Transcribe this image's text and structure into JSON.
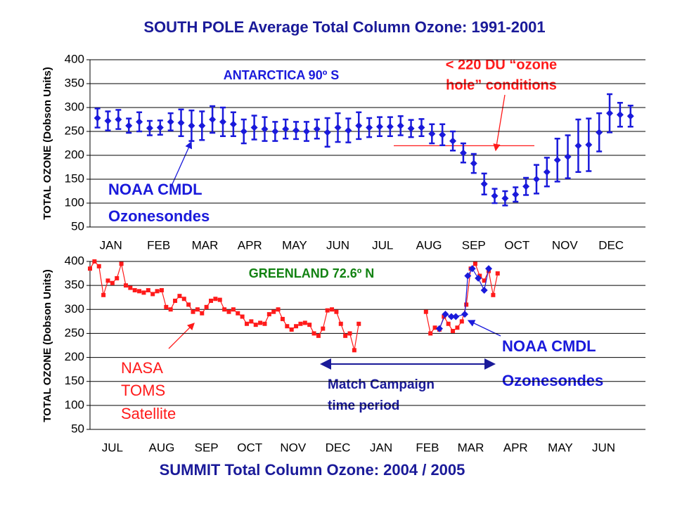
{
  "chart_data": [
    {
      "type": "errorbar",
      "title": "SOUTH POLE  Average Total Column Ozone: 1991-2001",
      "ylabel": "TOTAL OZONE (Dobson Units)",
      "annotations": [
        "ANTARCTICA 90º S",
        "< 220 DU “ozone",
        "hole” conditions",
        "NOAA CMDL",
        "Ozonesondes"
      ],
      "threshold": 220,
      "xlim": [
        0,
        372
      ],
      "xticks": [
        {
          "value": 14,
          "label": "JAN"
        },
        {
          "value": 46,
          "label": "FEB"
        },
        {
          "value": 77,
          "label": "MAR"
        },
        {
          "value": 107,
          "label": "APR"
        },
        {
          "value": 137,
          "label": "MAY"
        },
        {
          "value": 166,
          "label": "JUN"
        },
        {
          "value": 196,
          "label": "JUL"
        },
        {
          "value": 227,
          "label": "AUG"
        },
        {
          "value": 257,
          "label": "SEP"
        },
        {
          "value": 286,
          "label": "OCT"
        },
        {
          "value": 318,
          "label": "NOV"
        },
        {
          "value": 349,
          "label": "DEC"
        }
      ],
      "ylim": [
        50,
        400
      ],
      "yticks": [
        50,
        100,
        150,
        200,
        250,
        300,
        350,
        400
      ],
      "grid": true,
      "color": "#1a1adb",
      "x": [
        5,
        12,
        19,
        26,
        33,
        40,
        47,
        54,
        61,
        68,
        75,
        82,
        89,
        96,
        103,
        110,
        117,
        124,
        131,
        138,
        145,
        152,
        159,
        166,
        173,
        180,
        187,
        194,
        201,
        208,
        215,
        222,
        229,
        236,
        243,
        250,
        257,
        264,
        271,
        278,
        285,
        292,
        299,
        306,
        313,
        320,
        327,
        334,
        341,
        348,
        355,
        362
      ],
      "values": [
        278,
        272,
        275,
        262,
        270,
        257,
        258,
        270,
        268,
        262,
        262,
        275,
        270,
        265,
        250,
        258,
        255,
        250,
        255,
        252,
        250,
        255,
        248,
        258,
        252,
        262,
        258,
        260,
        260,
        262,
        256,
        258,
        245,
        243,
        230,
        205,
        183,
        140,
        115,
        110,
        118,
        135,
        150,
        165,
        190,
        197,
        220,
        222,
        248,
        288,
        285,
        282
      ],
      "errors": [
        20,
        20,
        20,
        15,
        20,
        15,
        15,
        18,
        28,
        32,
        30,
        28,
        30,
        25,
        25,
        25,
        25,
        20,
        20,
        18,
        20,
        20,
        30,
        30,
        25,
        28,
        20,
        20,
        20,
        20,
        18,
        18,
        20,
        22,
        20,
        20,
        20,
        22,
        15,
        15,
        15,
        18,
        30,
        30,
        45,
        45,
        55,
        55,
        40,
        40,
        25,
        22
      ]
    },
    {
      "type": "scatter_line",
      "title": "SUMMIT  Total Column Ozone:   2004 / 2005",
      "ylabel": "TOTAL OZONE (Dobson Units)",
      "annotations": [
        "GREENLAND  72.6º N",
        "NASA",
        "TOMS",
        "Satellite",
        "NOAA CMDL",
        "Ozonesondes",
        "Match Campaign",
        "time period"
      ],
      "xlim": [
        0,
        372
      ],
      "xticks": [
        {
          "value": 15,
          "label": "JUL"
        },
        {
          "value": 48,
          "label": "AUG"
        },
        {
          "value": 78,
          "label": "SEP"
        },
        {
          "value": 107,
          "label": "OCT"
        },
        {
          "value": 136,
          "label": "NOV"
        },
        {
          "value": 166,
          "label": "DEC"
        },
        {
          "value": 195,
          "label": "JAN"
        },
        {
          "value": 226,
          "label": "FEB"
        },
        {
          "value": 255,
          "label": "MAR"
        },
        {
          "value": 285,
          "label": "APR"
        },
        {
          "value": 315,
          "label": "MAY"
        },
        {
          "value": 344,
          "label": "JUN"
        }
      ],
      "ylim": [
        50,
        400
      ],
      "yticks": [
        50,
        100,
        150,
        200,
        250,
        300,
        350,
        400
      ],
      "grid": true,
      "series": [
        {
          "color": "#ff1a1a",
          "marker": "square",
          "x": [
            0,
            3,
            6,
            9,
            12,
            15,
            18,
            21,
            24,
            27,
            30,
            33,
            36,
            39,
            42,
            45,
            48,
            51,
            54,
            57,
            60,
            63,
            66,
            69,
            72,
            75,
            78,
            81,
            84,
            87,
            90,
            93,
            96,
            99,
            102,
            105,
            108,
            111,
            114,
            117,
            120,
            123,
            126,
            129,
            132,
            135,
            138,
            141,
            144,
            147,
            150,
            153,
            156,
            159,
            162,
            165,
            168,
            171,
            174,
            177,
            180,
            200,
            225,
            228,
            231,
            234,
            237,
            240,
            243,
            246,
            249,
            252,
            255,
            258,
            261,
            264,
            267,
            270,
            273
          ],
          "values": [
            385,
            400,
            390,
            330,
            360,
            355,
            365,
            395,
            350,
            345,
            340,
            338,
            335,
            340,
            332,
            338,
            340,
            305,
            300,
            318,
            328,
            322,
            310,
            295,
            300,
            292,
            305,
            318,
            322,
            320,
            300,
            295,
            300,
            292,
            285,
            270,
            275,
            268,
            272,
            270,
            290,
            295,
            300,
            280,
            265,
            258,
            265,
            270,
            272,
            268,
            250,
            245,
            260,
            298,
            300,
            295,
            270,
            245,
            250,
            215,
            270,
            null,
            295,
            250,
            262,
            258,
            285,
            270,
            255,
            262,
            275,
            310,
            385,
            395,
            370,
            360,
            380,
            330,
            375
          ]
        },
        {
          "color": "#1a1adb",
          "marker": "diamond",
          "x": [
            234,
            238,
            242,
            245,
            251,
            253,
            256,
            260,
            264,
            267
          ],
          "values": [
            260,
            290,
            285,
            285,
            290,
            370,
            385,
            365,
            340,
            385
          ]
        }
      ]
    }
  ]
}
